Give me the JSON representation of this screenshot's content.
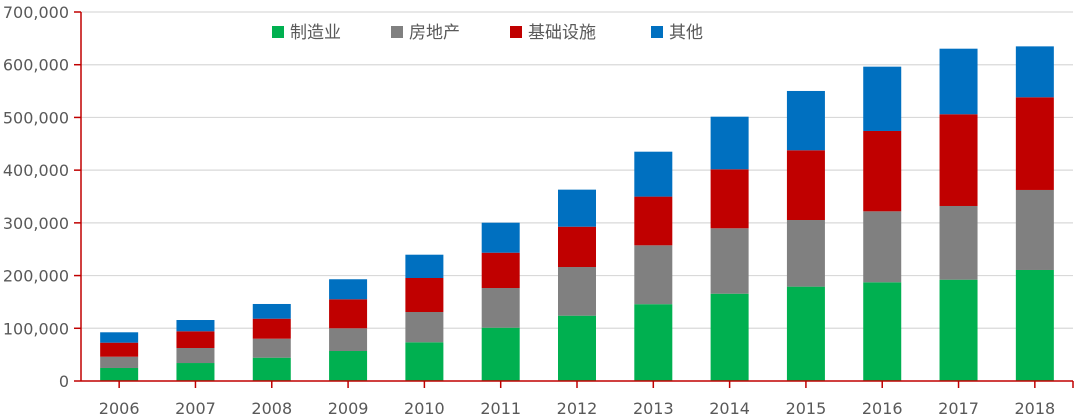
{
  "chart_data": {
    "type": "bar",
    "stacked": true,
    "title": "",
    "xlabel": "",
    "ylabel": "",
    "ylim": [
      0,
      700000
    ],
    "yticks": [
      0,
      100000,
      200000,
      300000,
      400000,
      500000,
      600000,
      700000
    ],
    "ytick_labels": [
      "0",
      "100,000",
      "200,000",
      "300,000",
      "400,000",
      "500,000",
      "600,000",
      "700,000"
    ],
    "grid": true,
    "legend_position": "top-center",
    "categories": [
      "2006",
      "2007",
      "2008",
      "2009",
      "2010",
      "2011",
      "2012",
      "2013",
      "2014",
      "2015",
      "2016",
      "2017",
      "2018"
    ],
    "series": [
      {
        "name": "制造业",
        "color": "#00B050",
        "values": [
          24700,
          34100,
          44200,
          56900,
          73400,
          101100,
          123900,
          145700,
          165600,
          179000,
          187200,
          192200,
          210600
        ]
      },
      {
        "name": "房地产",
        "color": "#808080",
        "values": [
          21400,
          28500,
          36100,
          43100,
          57500,
          75300,
          92300,
          111700,
          124100,
          126400,
          134700,
          139800,
          151800
        ]
      },
      {
        "name": "基础设施",
        "color": "#C00000",
        "values": [
          26600,
          31700,
          37900,
          55000,
          64500,
          67000,
          76500,
          92400,
          111900,
          132300,
          152400,
          174000,
          175800
        ]
      },
      {
        "name": "其他",
        "color": "#0070C0",
        "values": [
          19700,
          21400,
          27900,
          38000,
          44200,
          56900,
          70300,
          85200,
          99800,
          112500,
          122000,
          124400,
          96600
        ]
      }
    ]
  },
  "colors": {
    "axis": "#C00000",
    "grid": "#D9D9D9",
    "text": "#595959"
  }
}
